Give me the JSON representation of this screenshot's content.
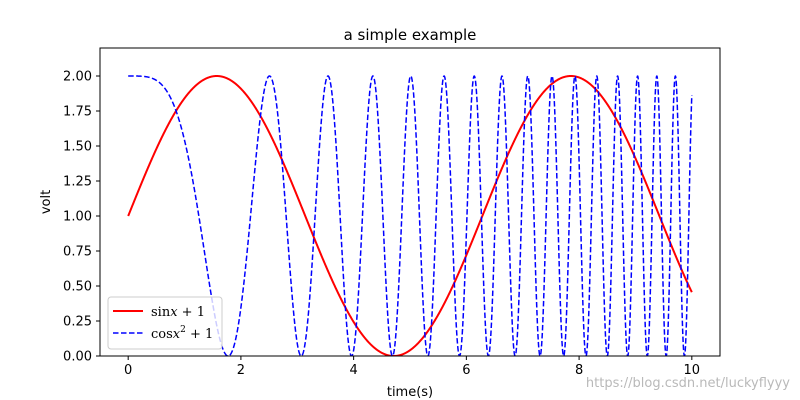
{
  "chart_data": {
    "type": "line",
    "title": "a simple example",
    "xlabel": "time(s)",
    "ylabel": "volt",
    "xlim": [
      -0.5,
      10.5
    ],
    "ylim": [
      0.0,
      2.2
    ],
    "x_ticks": [
      0,
      2,
      4,
      6,
      8,
      10
    ],
    "x_tick_labels": [
      "0",
      "2",
      "4",
      "6",
      "8",
      "10"
    ],
    "y_ticks": [
      0.0,
      0.25,
      0.5,
      0.75,
      1.0,
      1.25,
      1.5,
      1.75,
      2.0
    ],
    "y_tick_labels": [
      "0.00",
      "0.25",
      "0.50",
      "0.75",
      "1.00",
      "1.25",
      "1.50",
      "1.75",
      "2.00"
    ],
    "grid": false,
    "legend_position": "lower-left",
    "x_range": [
      0,
      10
    ],
    "series": [
      {
        "name": "sinx + 1",
        "name_parts": [
          {
            "t": "sin"
          },
          {
            "t": "x",
            "i": true
          },
          {
            "t": " + 1"
          }
        ],
        "formula": "sin(x) + 1",
        "color": "#ff0000",
        "style": "solid",
        "line_width": 2,
        "x": [
          0,
          0.5,
          1,
          1.5708,
          2,
          2.5,
          3,
          3.5,
          4,
          4.7124,
          5,
          5.5,
          6,
          6.5,
          7,
          7.854,
          8,
          8.5,
          9,
          9.5,
          10
        ],
        "values": [
          1.0,
          1.479,
          1.841,
          2.0,
          1.909,
          1.598,
          1.141,
          0.649,
          0.243,
          0.0,
          0.041,
          0.295,
          0.721,
          1.215,
          1.657,
          2.0,
          1.989,
          1.798,
          1.412,
          0.925,
          0.456
        ]
      },
      {
        "name": "cosx² + 1",
        "name_parts": [
          {
            "t": "cos"
          },
          {
            "t": "x",
            "i": true
          },
          {
            "t": "2",
            "sup": true
          },
          {
            "t": " + 1"
          }
        ],
        "formula": "cos(x^2) + 1",
        "color": "#0000ff",
        "style": "dashed",
        "line_width": 1.5,
        "x": [
          0,
          0.5,
          1,
          1.5,
          1.7725,
          2,
          2.5,
          3,
          3.07,
          3.5,
          4,
          5,
          6,
          7,
          8,
          9,
          10
        ],
        "values": [
          2.0,
          1.969,
          1.54,
          0.372,
          0.0,
          0.346,
          1.999,
          0.089,
          0.0,
          1.974,
          0.042,
          2.0,
          0.0,
          1.0,
          0.0,
          0.0,
          1.862
        ]
      }
    ]
  },
  "watermark": "https://blog.csdn.net/luckyflyyy"
}
